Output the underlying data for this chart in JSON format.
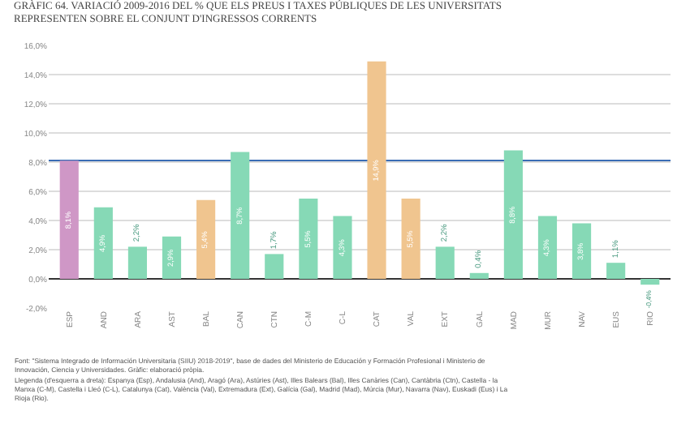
{
  "chart_data": {
    "type": "bar",
    "title": "GRÀFIC 64. VARIACIÓ 2009-2016 DEL % QUE ELS PREUS I TAXES PÚBLIQUES DE LES UNIVERSITATS REPRESENTEN SOBRE EL CONJUNT D'INGRESSOS CORRENTS",
    "categories": [
      "ESP",
      "AND",
      "ARA",
      "AST",
      "BAL",
      "CAN",
      "CTN",
      "C-M",
      "C-L",
      "CAT",
      "VAL",
      "EXT",
      "GAL",
      "MAD",
      "MUR",
      "NAV",
      "EUS",
      "RIO"
    ],
    "values": [
      8.1,
      4.9,
      2.2,
      2.9,
      5.4,
      8.7,
      1.7,
      5.5,
      4.3,
      14.9,
      5.5,
      2.2,
      0.4,
      8.8,
      4.3,
      3.8,
      1.1,
      -0.4
    ],
    "value_labels": [
      "8,1%",
      "4,9%",
      "2,2%",
      "2,9%",
      "5,4%",
      "8,7%",
      "1,7%",
      "5,5%",
      "4,3%",
      "14,9%",
      "5,5%",
      "2,2%",
      "0,4%",
      "8,8%",
      "4,3%",
      "3,8%",
      "1,1%",
      "-0,4%"
    ],
    "colors": [
      "#cf97c6",
      "#86d9b6",
      "#86d9b6",
      "#86d9b6",
      "#f0c58f",
      "#86d9b6",
      "#86d9b6",
      "#86d9b6",
      "#86d9b6",
      "#f0c58f",
      "#f0c58f",
      "#86d9b6",
      "#86d9b6",
      "#86d9b6",
      "#86d9b6",
      "#86d9b6",
      "#86d9b6",
      "#86d9b6"
    ],
    "ylim": [
      -2,
      16
    ],
    "yticks": [
      {
        "value": -2,
        "label": "-2,0%"
      },
      {
        "value": 0,
        "label": "0,0%"
      },
      {
        "value": 2,
        "label": "2,0%"
      },
      {
        "value": 4,
        "label": "4,0%"
      },
      {
        "value": 6,
        "label": "6,0%"
      },
      {
        "value": 8,
        "label": "8,0%"
      },
      {
        "value": 10,
        "label": "10,0%"
      },
      {
        "value": 12,
        "label": "12,0%"
      },
      {
        "value": 14,
        "label": "14,0%"
      },
      {
        "value": 16,
        "label": "16,0%"
      }
    ],
    "grid": "y",
    "ref_lines": [
      {
        "axis": "y",
        "value": 8.1,
        "color": "#3a6db5"
      }
    ],
    "annotations": [
      "Font: \"Sistema Integrado de Información Universitaria (SIIU) 2018-2019\", base de dades del Ministerio de Educación y Formación Profesional i Ministerio de Innovación, Ciencia y Universidades. Gràfic: elaboració pròpia.",
      "Llegenda (d'esquerra a dreta): Espanya (Esp), Andalusia (And), Aragó (Ara), Astúries (Ast), Illes Balears (Bal), Illes Canàries (Can), Cantàbria (Ctn), Castella - la Manxa (C-M), Castella i Lleó (C-L), Catalunya (Cat), València (Val), Extremadura (Ext), Galícia (Gal), Madrid (Mad), Múrcia (Mur), Navarra (Nav), Euskadi (Eus) i La Rioja (Rio)."
    ]
  }
}
